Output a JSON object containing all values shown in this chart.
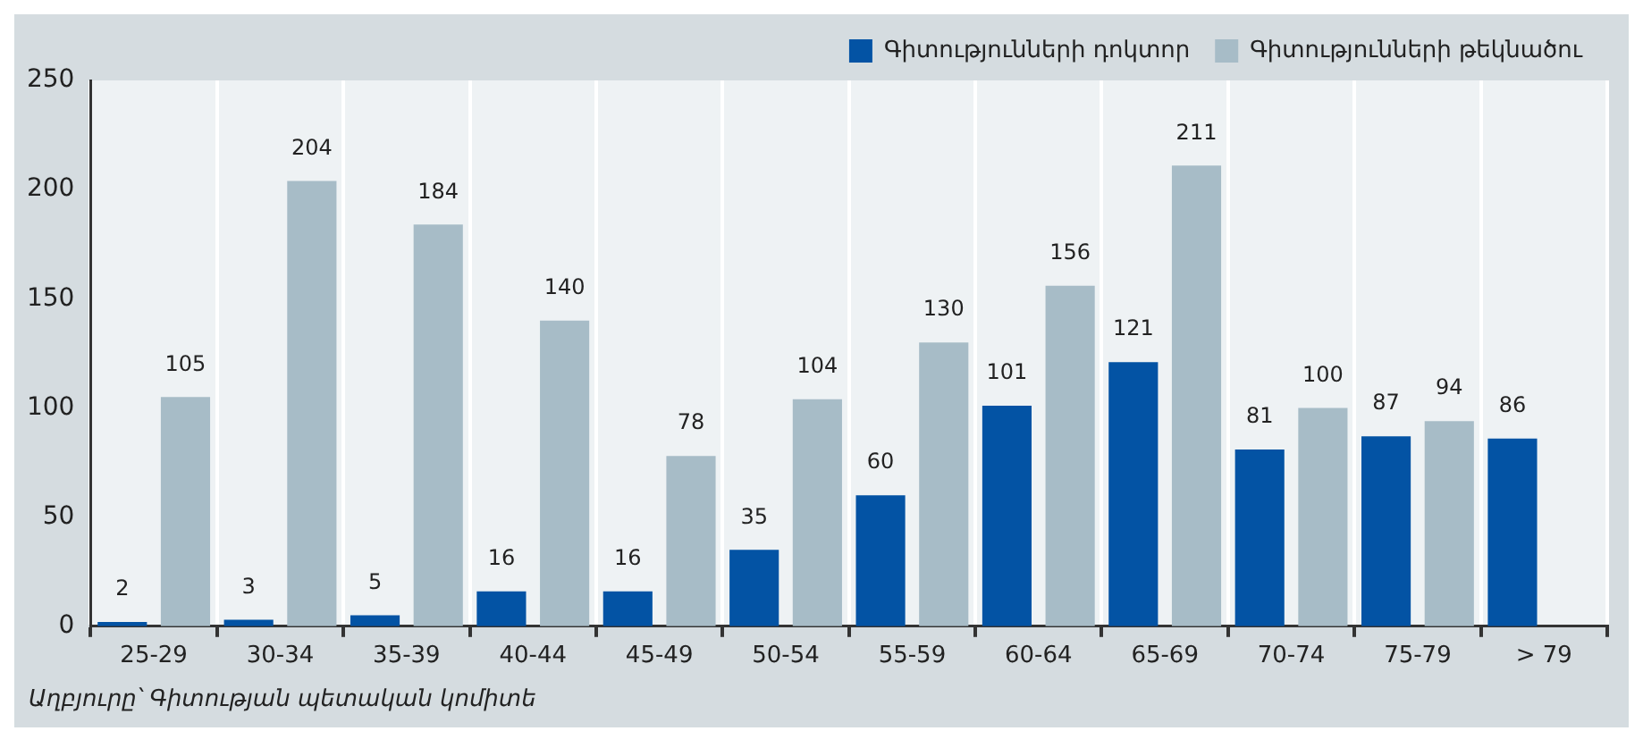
{
  "chart_data": {
    "type": "bar",
    "categories": [
      "25-29",
      "30-34",
      "35-39",
      "40-44",
      "45-49",
      "50-54",
      "55-59",
      "60-64",
      "65-69",
      "70-74",
      "75-79",
      "> 79"
    ],
    "series": [
      {
        "name": "Գիտությունների դոկտոր",
        "color": "#0353a4",
        "values": [
          2,
          3,
          5,
          16,
          16,
          35,
          60,
          101,
          121,
          81,
          87,
          86
        ]
      },
      {
        "name": "Գիտությունների թեկնածու",
        "color": "#a7bcc7",
        "values": [
          105,
          204,
          184,
          140,
          78,
          104,
          130,
          156,
          211,
          100,
          94,
          null
        ]
      }
    ],
    "ylim": [
      0,
      250
    ],
    "yticks": [
      0,
      50,
      100,
      150,
      200,
      250
    ],
    "grid": "x",
    "legend": "top right",
    "data_labels": true,
    "annotations": [
      "Աղբյուրը՝ Գիտության պետական կոմիտե"
    ]
  }
}
